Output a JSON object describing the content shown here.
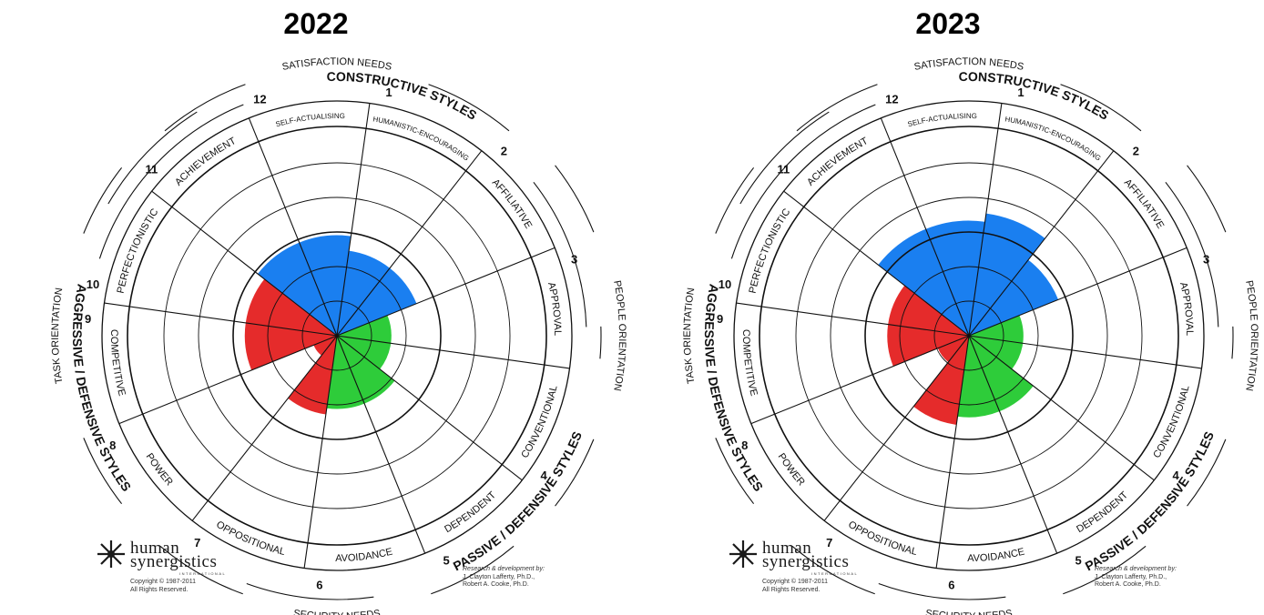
{
  "colors": {
    "constructive": "#1a7ff0",
    "passive_defensive": "#2ecc3a",
    "aggressive_defensive": "#e52b2b"
  },
  "labels": {
    "top_need": "SATISFACTION NEEDS",
    "bottom_need": "SECURITY NEEDS",
    "left_orientation": "TASK ORIENTATION",
    "right_orientation": "PEOPLE ORIENTATION",
    "constructive": "CONSTRUCTIVE STYLES",
    "passive": "PASSIVE / DEFENSIVE STYLES",
    "aggressive": "AGGRESSIVE / DEFENSIVE STYLES"
  },
  "styles": [
    {
      "num": "1",
      "name": "HUMANISTIC-ENCOURAGING"
    },
    {
      "num": "2",
      "name": "AFFILIATIVE"
    },
    {
      "num": "3",
      "name": "APPROVAL"
    },
    {
      "num": "4",
      "name": "CONVENTIONAL"
    },
    {
      "num": "5",
      "name": "DEPENDENT"
    },
    {
      "num": "6",
      "name": "AVOIDANCE"
    },
    {
      "num": "7",
      "name": "OPPOSITIONAL"
    },
    {
      "num": "8",
      "name": "POWER"
    },
    {
      "num": "9",
      "name": "COMPETITIVE"
    },
    {
      "num": "10",
      "name": "PERFECTIONISTIC"
    },
    {
      "num": "11",
      "name": "ACHIEVEMENT"
    },
    {
      "num": "12",
      "name": "SELF-ACTUALISING"
    }
  ],
  "logo": {
    "line1": "human",
    "line2": "synergistics",
    "intl": "INTERNATIONAL",
    "copyright": "Copyright © 1987-2011",
    "rights": "All Rights Reserved."
  },
  "credits": {
    "heading": "Research & development by:",
    "author1": "J. Clayton Lafferty, Ph.D.,",
    "author2": "Robert A. Cooke, Ph.D."
  },
  "chart_data": [
    {
      "type": "circumplex",
      "title": "2022",
      "scale": "radial extent as fraction of outer grid (0 to 1)",
      "series": [
        {
          "style": "1",
          "group": "constructive",
          "value": 0.41
        },
        {
          "style": "2",
          "group": "constructive",
          "value": 0.41
        },
        {
          "style": "3",
          "group": "passive_defensive",
          "value": 0.26
        },
        {
          "style": "4",
          "group": "passive_defensive",
          "value": 0.26
        },
        {
          "style": "5",
          "group": "passive_defensive",
          "value": 0.35
        },
        {
          "style": "6",
          "group": "passive_defensive",
          "value": 0.35
        },
        {
          "style": "7",
          "group": "aggressive_defensive",
          "value": 0.38
        },
        {
          "style": "8",
          "group": "aggressive_defensive",
          "value": 0.12
        },
        {
          "style": "9",
          "group": "aggressive_defensive",
          "value": 0.44
        },
        {
          "style": "10",
          "group": "aggressive_defensive",
          "value": 0.44
        },
        {
          "style": "11",
          "group": "constructive",
          "value": 0.48
        },
        {
          "style": "12",
          "group": "constructive",
          "value": 0.48
        }
      ]
    },
    {
      "type": "circumplex",
      "title": "2023",
      "scale": "radial extent as fraction of outer grid (0 to 1)",
      "series": [
        {
          "style": "1",
          "group": "constructive",
          "value": 0.59
        },
        {
          "style": "2",
          "group": "constructive",
          "value": 0.46
        },
        {
          "style": "3",
          "group": "passive_defensive",
          "value": 0.26
        },
        {
          "style": "4",
          "group": "passive_defensive",
          "value": 0.26
        },
        {
          "style": "5",
          "group": "passive_defensive",
          "value": 0.39
        },
        {
          "style": "6",
          "group": "passive_defensive",
          "value": 0.39
        },
        {
          "style": "7",
          "group": "aggressive_defensive",
          "value": 0.43
        },
        {
          "style": "8",
          "group": "aggressive_defensive",
          "value": 0.16
        },
        {
          "style": "9",
          "group": "aggressive_defensive",
          "value": 0.39
        },
        {
          "style": "10",
          "group": "aggressive_defensive",
          "value": 0.39
        },
        {
          "style": "11",
          "group": "constructive",
          "value": 0.55
        },
        {
          "style": "12",
          "group": "constructive",
          "value": 0.55
        }
      ]
    }
  ]
}
